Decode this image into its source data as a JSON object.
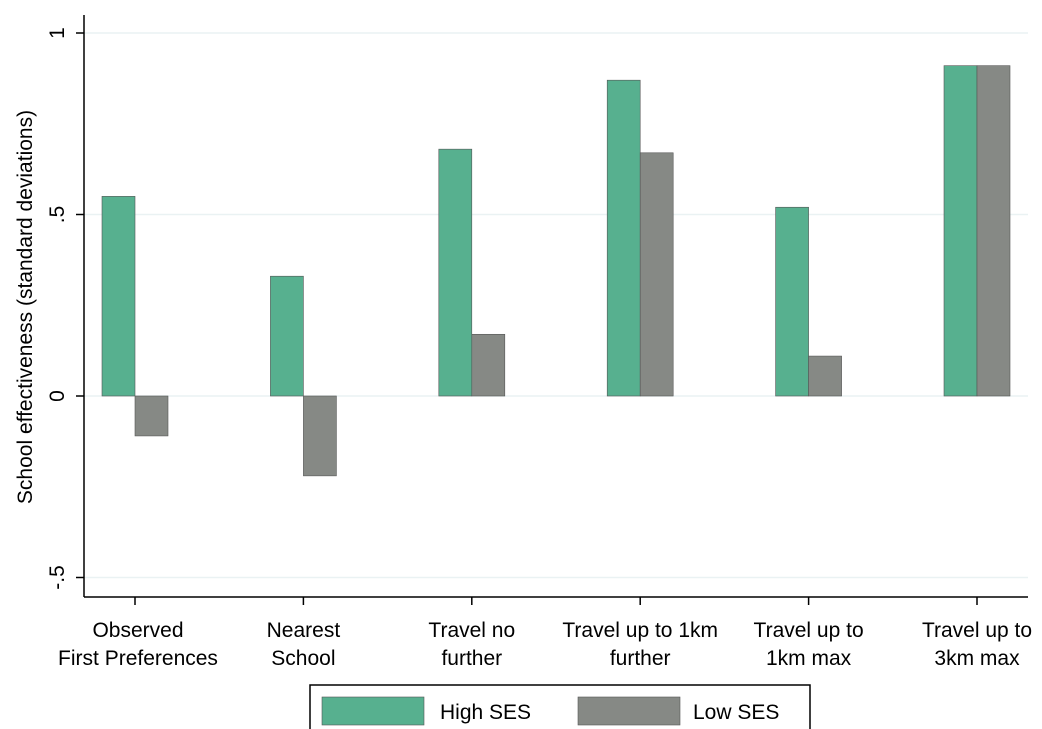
{
  "chart_data": {
    "type": "bar",
    "ylabel": "School effectiveness (standard deviations)",
    "ylim": [
      -0.5,
      1
    ],
    "yticks": [
      {
        "value": 1,
        "label": "1"
      },
      {
        "value": 0.5,
        "label": ".5"
      },
      {
        "value": 0,
        "label": "0"
      },
      {
        "value": -0.5,
        "label": "-.5"
      }
    ],
    "grid": true,
    "categories": [
      [
        "Observed",
        "First Preferences"
      ],
      [
        "Nearest",
        "School"
      ],
      [
        "Travel no",
        "further"
      ],
      [
        "Travel up to 1km",
        "further"
      ],
      [
        "Travel up to",
        "1km max"
      ],
      [
        "Travel up to",
        "3km max"
      ]
    ],
    "series": [
      {
        "name": "High SES",
        "color": "#57b08f",
        "values": [
          0.55,
          0.33,
          0.68,
          0.87,
          0.52,
          0.91
        ]
      },
      {
        "name": "Low SES",
        "color": "#868985",
        "values": [
          -0.11,
          -0.22,
          0.17,
          0.67,
          0.11,
          0.91
        ]
      }
    ],
    "legend_position": "bottom"
  }
}
